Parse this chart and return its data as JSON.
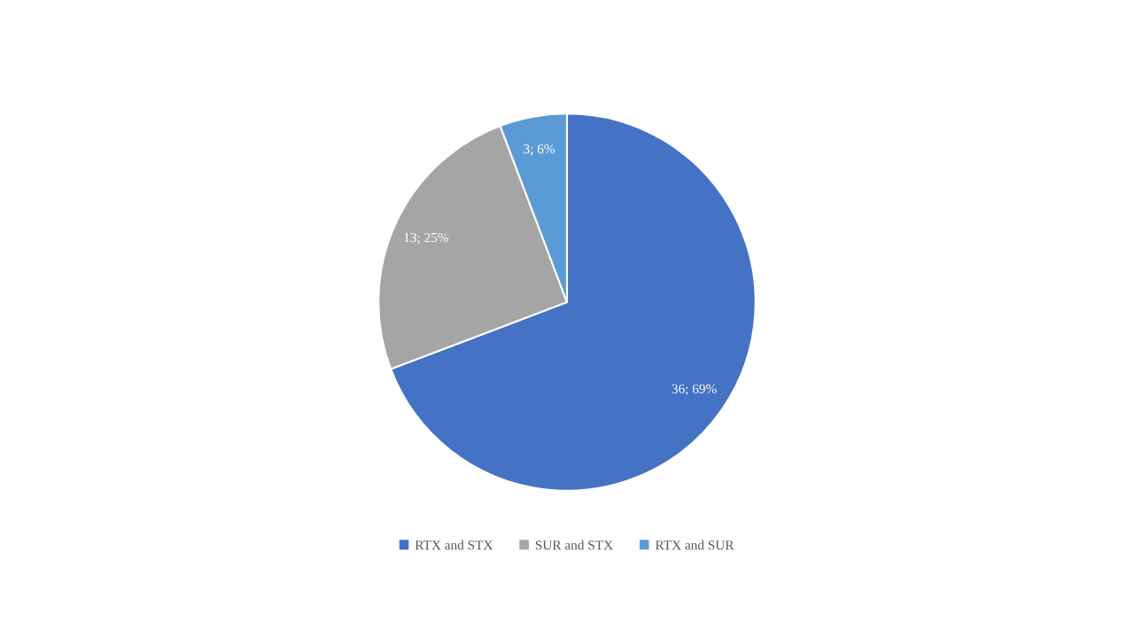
{
  "chart_data": {
    "type": "pie",
    "categories": [
      "RTX and STX",
      "SUR and STX",
      "RTX and SUR"
    ],
    "values": [
      36,
      13,
      3
    ],
    "colors": [
      "#4472c4",
      "#a5a5a5",
      "#5b9bd5"
    ],
    "value_labels": [
      "36; 69%",
      "13; 25%",
      "3; 6%"
    ],
    "legend": "bottom"
  }
}
